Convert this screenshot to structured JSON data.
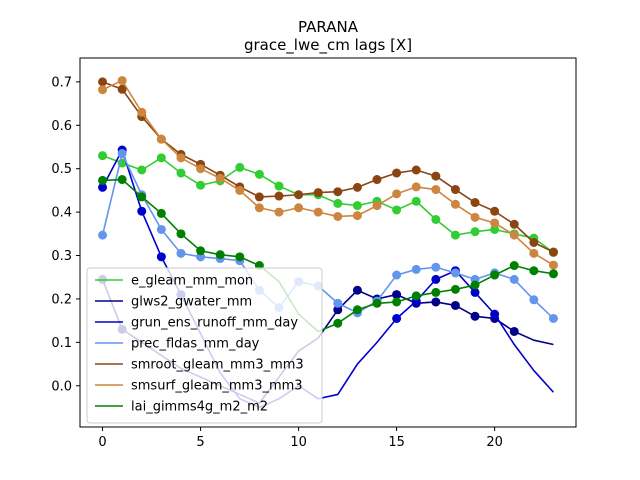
{
  "chart_data": {
    "type": "line",
    "title": "PARANA",
    "subtitle": "grace_lwe_cm lags [X]",
    "xlabel": "",
    "ylabel": "",
    "xlim": [
      -1.15,
      24.15
    ],
    "ylim": [
      -0.095,
      0.755
    ],
    "x_ticks": [
      0,
      5,
      10,
      15,
      20
    ],
    "y_ticks": [
      0.0,
      0.1,
      0.2,
      0.3,
      0.4,
      0.5,
      0.6,
      0.7
    ],
    "y_tick_labels": [
      "0.0",
      "0.1",
      "0.2",
      "0.3",
      "0.4",
      "0.5",
      "0.6",
      "0.7"
    ],
    "grid": false,
    "legend_position": "lower-left",
    "series": [
      {
        "name": "e_gleam_mm_mon",
        "color": "#32cd32",
        "x": [
          0,
          1,
          2,
          3,
          4,
          5,
          6,
          7,
          8,
          9,
          10,
          11,
          12,
          13,
          14,
          15,
          16,
          17,
          18,
          19,
          20,
          21,
          22,
          23
        ],
        "line_y": [
          0.53,
          0.513,
          0.497,
          0.525,
          0.49,
          0.462,
          0.472,
          0.503,
          0.487,
          0.46,
          0.44,
          0.44,
          0.42,
          0.415,
          0.425,
          0.405,
          0.425,
          0.383,
          0.347,
          0.355,
          0.36,
          0.35,
          0.34,
          0.307
        ],
        "marker_y": [
          0.53,
          0.513,
          0.497,
          0.525,
          0.49,
          0.462,
          0.472,
          0.503,
          0.487,
          0.46,
          0.44,
          0.44,
          0.42,
          0.415,
          0.425,
          0.405,
          0.425,
          0.383,
          0.347,
          0.355,
          0.36,
          0.35,
          0.34,
          0.307
        ]
      },
      {
        "name": "glws2_gwater_mm",
        "color": "#00008b",
        "x": [
          0,
          1,
          2,
          3,
          4,
          5,
          6,
          7,
          8,
          9,
          10,
          11,
          12,
          13,
          14,
          15,
          16,
          17,
          18,
          19,
          20,
          21,
          22,
          23
        ],
        "line_y": [
          0.245,
          0.13,
          0.1,
          0.07,
          0.04,
          0.02,
          0.0,
          -0.02,
          -0.04,
          0.02,
          0.08,
          0.11,
          0.175,
          0.22,
          0.2,
          0.21,
          0.19,
          0.193,
          0.185,
          0.16,
          0.155,
          0.125,
          0.105,
          0.095
        ],
        "marker_y": [
          0.245,
          0.13,
          null,
          null,
          null,
          null,
          null,
          null,
          null,
          null,
          null,
          null,
          0.175,
          0.22,
          0.2,
          0.21,
          0.19,
          0.193,
          0.185,
          0.16,
          0.155,
          0.125,
          null,
          null
        ]
      },
      {
        "name": "grun_ens_runoff_mm_day",
        "color": "#0000cd",
        "x": [
          0,
          1,
          2,
          3,
          4,
          5,
          6,
          7,
          8,
          9,
          10,
          11,
          12,
          13,
          14,
          15,
          16,
          17,
          18,
          19,
          20,
          21,
          22,
          23
        ],
        "line_y": [
          0.457,
          0.543,
          0.402,
          0.297,
          0.21,
          0.12,
          0.03,
          -0.03,
          -0.05,
          -0.03,
          0.0,
          -0.03,
          -0.02,
          0.05,
          0.1,
          0.155,
          0.195,
          0.245,
          0.265,
          0.215,
          0.165,
          0.095,
          0.035,
          -0.015
        ],
        "marker_y": [
          0.457,
          0.543,
          0.402,
          0.297,
          0.21,
          null,
          null,
          null,
          null,
          null,
          null,
          null,
          null,
          null,
          null,
          0.155,
          0.195,
          0.245,
          0.265,
          0.215,
          0.165,
          null,
          null,
          null
        ]
      },
      {
        "name": "prec_fldas_mm_day",
        "color": "#6495ed",
        "x": [
          0,
          1,
          2,
          3,
          4,
          5,
          6,
          7,
          8,
          9,
          10,
          11,
          12,
          13,
          14,
          15,
          16,
          17,
          18,
          19,
          20,
          21,
          22,
          23
        ],
        "line_y": [
          0.347,
          0.535,
          0.44,
          0.36,
          0.305,
          0.297,
          0.293,
          0.288,
          0.22,
          0.18,
          0.24,
          0.23,
          0.19,
          0.168,
          0.195,
          0.255,
          0.268,
          0.273,
          0.26,
          0.245,
          0.26,
          0.245,
          0.198,
          0.155
        ],
        "marker_y": [
          0.347,
          0.535,
          0.44,
          0.36,
          0.305,
          0.297,
          0.293,
          0.288,
          0.22,
          0.18,
          0.24,
          0.23,
          0.19,
          0.168,
          0.195,
          0.255,
          0.268,
          0.273,
          0.26,
          0.245,
          0.26,
          0.245,
          0.198,
          0.155
        ]
      },
      {
        "name": "smroot_gleam_mm3_mm3",
        "color": "#8b4513",
        "x": [
          0,
          1,
          2,
          3,
          4,
          5,
          6,
          7,
          8,
          9,
          10,
          11,
          12,
          13,
          14,
          15,
          16,
          17,
          18,
          19,
          20,
          21,
          22,
          23
        ],
        "line_y": [
          0.7,
          0.683,
          0.62,
          0.568,
          0.533,
          0.51,
          0.485,
          0.458,
          0.435,
          0.437,
          0.44,
          0.445,
          0.447,
          0.457,
          0.475,
          0.49,
          0.497,
          0.483,
          0.452,
          0.422,
          0.402,
          0.372,
          0.33,
          0.308
        ],
        "marker_y": [
          0.7,
          0.683,
          0.62,
          0.568,
          0.533,
          0.51,
          0.485,
          0.458,
          0.435,
          0.437,
          0.44,
          0.445,
          0.447,
          0.457,
          0.475,
          0.49,
          0.497,
          0.483,
          0.452,
          0.422,
          0.402,
          0.372,
          0.33,
          0.308
        ]
      },
      {
        "name": "smsurf_gleam_mm3_mm3",
        "color": "#cd853f",
        "x": [
          0,
          1,
          2,
          3,
          4,
          5,
          6,
          7,
          8,
          9,
          10,
          11,
          12,
          13,
          14,
          15,
          16,
          17,
          18,
          19,
          20,
          21,
          22,
          23
        ],
        "line_y": [
          0.682,
          0.703,
          0.63,
          0.568,
          0.525,
          0.5,
          0.478,
          0.45,
          0.41,
          0.4,
          0.41,
          0.4,
          0.39,
          0.392,
          0.415,
          0.442,
          0.458,
          0.452,
          0.418,
          0.388,
          0.375,
          0.347,
          0.305,
          0.278
        ],
        "marker_y": [
          0.682,
          0.703,
          0.63,
          0.568,
          0.525,
          0.5,
          0.478,
          0.45,
          0.41,
          0.4,
          0.41,
          0.4,
          0.39,
          0.392,
          0.415,
          0.442,
          0.458,
          0.452,
          0.418,
          0.388,
          0.375,
          0.347,
          0.305,
          0.278
        ]
      },
      {
        "name": "lai_gimms4g_m2_m2",
        "color": "#008000",
        "x": [
          0,
          1,
          2,
          3,
          4,
          5,
          6,
          7,
          8,
          9,
          10,
          11,
          12,
          13,
          14,
          15,
          16,
          17,
          18,
          19,
          20,
          21,
          22,
          23
        ],
        "line_y": [
          0.473,
          0.475,
          0.435,
          0.397,
          0.35,
          0.311,
          0.302,
          0.297,
          0.277,
          0.24,
          0.165,
          0.125,
          0.144,
          0.175,
          0.19,
          0.193,
          0.207,
          0.215,
          0.222,
          0.232,
          0.255,
          0.277,
          0.265,
          0.258
        ],
        "marker_y": [
          0.473,
          0.475,
          0.435,
          0.397,
          0.35,
          0.311,
          0.302,
          0.297,
          0.277,
          null,
          null,
          null,
          0.144,
          0.175,
          0.19,
          0.193,
          0.207,
          0.215,
          0.222,
          0.232,
          0.255,
          0.277,
          0.265,
          0.258
        ]
      }
    ]
  }
}
